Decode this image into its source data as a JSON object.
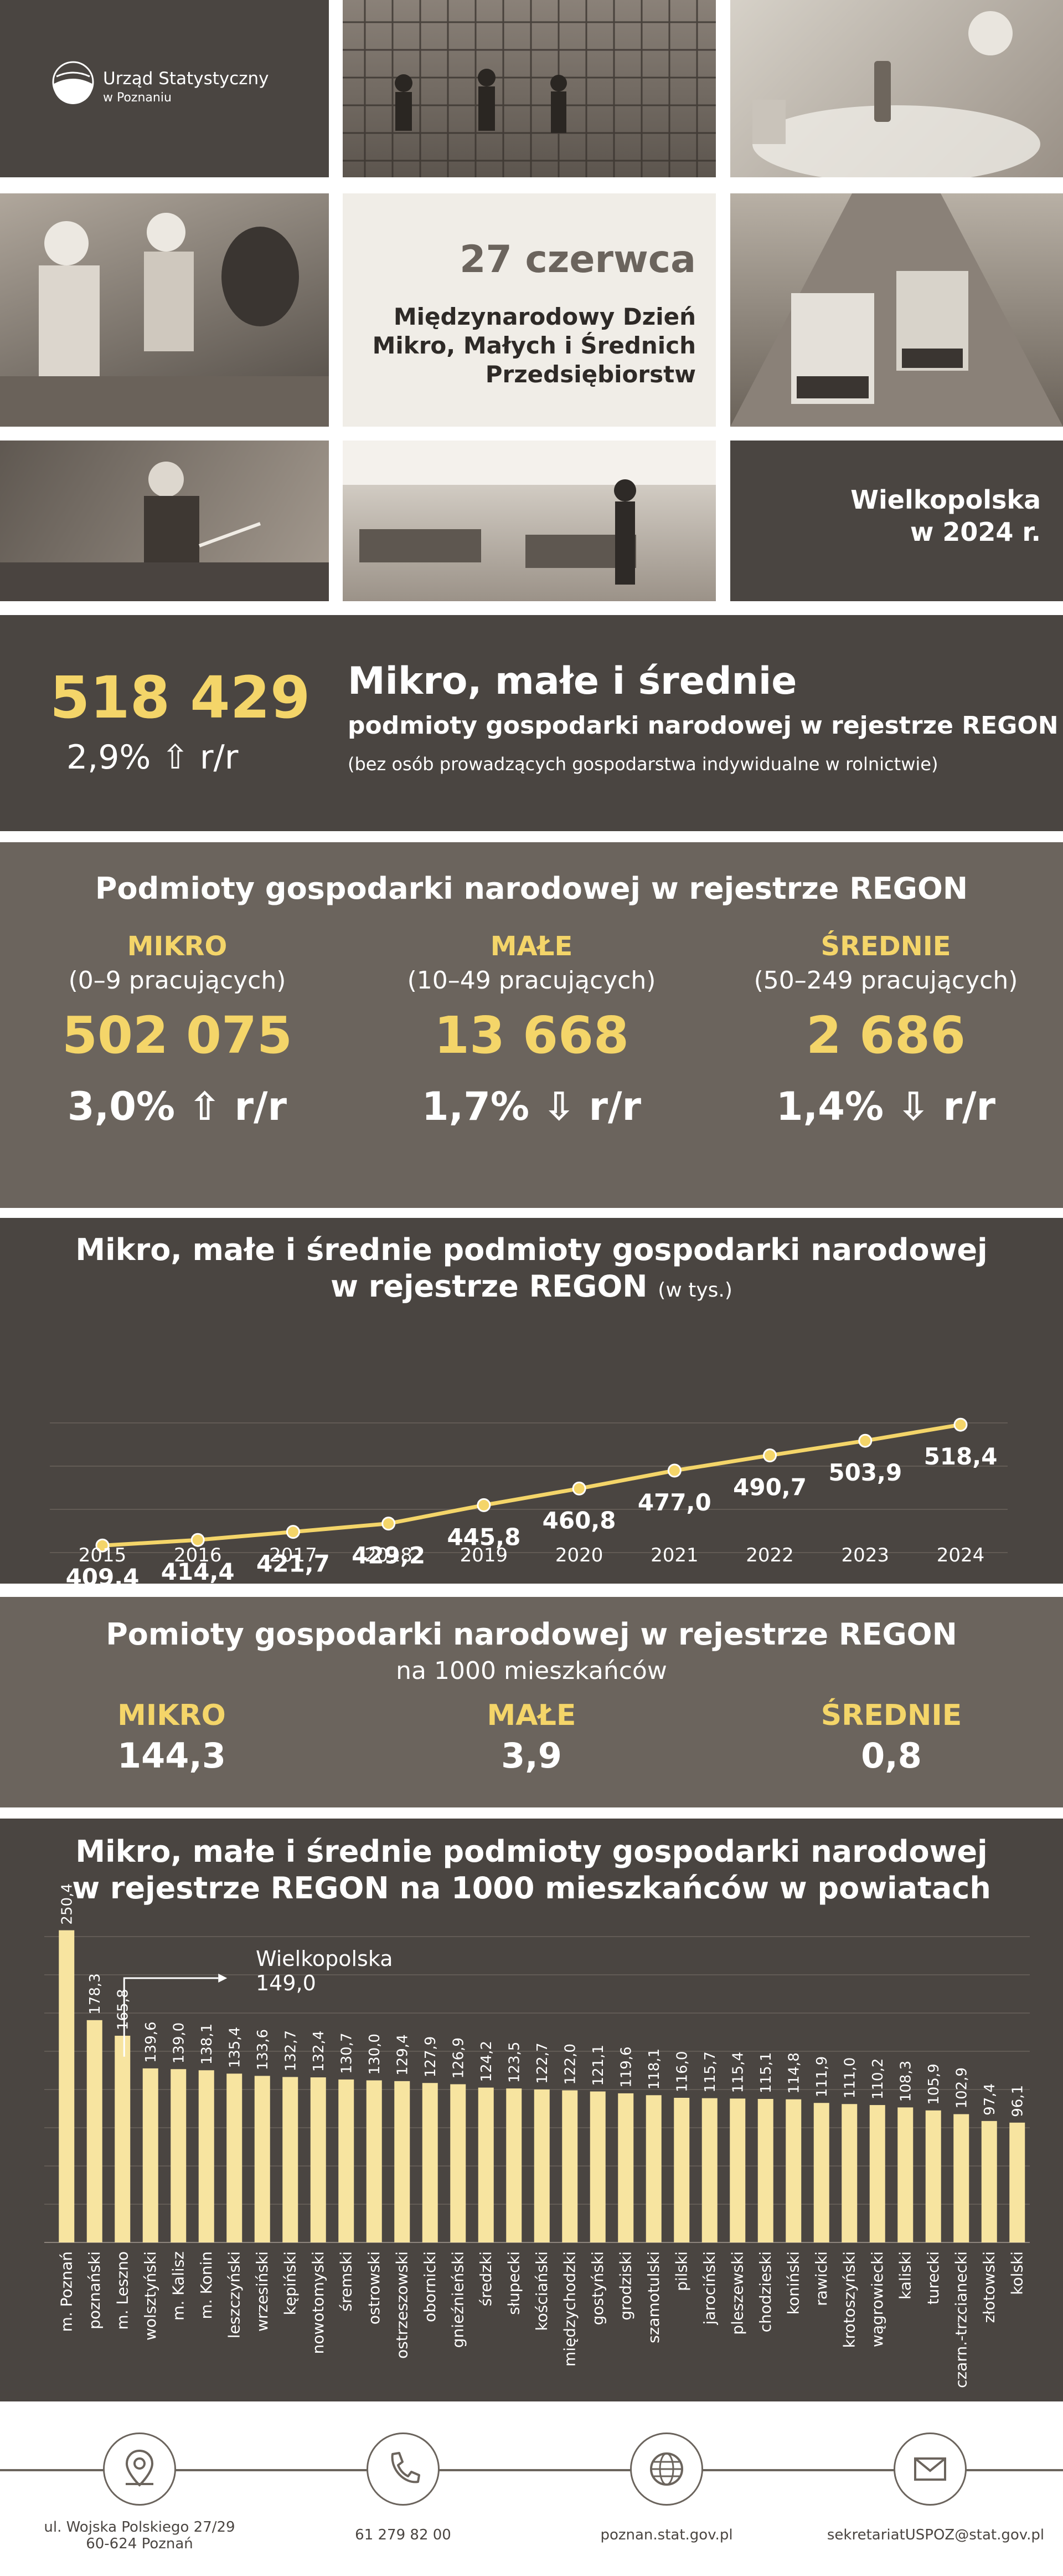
{
  "header": {
    "logo_line1": "Urząd Statystyczny",
    "logo_line2": "w Poznaniu",
    "date": "27 czerwca",
    "event_line1": "Międzynarodowy Dzień",
    "event_line2": "Mikro, Małych i Średnich",
    "event_line3": "Przedsiębiorstw",
    "region_line1": "Wielkopolska",
    "region_line2": "w 2024 r."
  },
  "summary": {
    "value": "518 429",
    "change": "2,9% ⇧ r/r",
    "title": "Mikro, małe i średnie",
    "subtitle": "podmioty gospodarki narodowej w rejestrze REGON",
    "note": "(bez osób prowadzących gospodarstwa indywidualne w rolnictwie)"
  },
  "categories": {
    "title": "Podmioty gospodarki narodowej w rejestrze REGON",
    "items": [
      {
        "name": "MIKRO",
        "range": "(0–9 pracujących)",
        "value": "502 075",
        "change": "3,0% ⇧ r/r"
      },
      {
        "name": "MAŁE",
        "range": "(10–49 pracujących)",
        "value": "13 668",
        "change": "1,7% ⇩ r/r"
      },
      {
        "name": "ŚREDNIE",
        "range": "(50–249 pracujących)",
        "value": "2 686",
        "change": "1,4% ⇩ r/r"
      }
    ]
  },
  "per1000": {
    "title": "Pomioty gospodarki narodowej w rejestrze REGON",
    "subtitle": "na 1000 mieszkańców",
    "items": [
      {
        "name": "MIKRO",
        "value": "144,3"
      },
      {
        "name": "MAŁE",
        "value": "3,9"
      },
      {
        "name": "ŚREDNIE",
        "value": "0,8"
      }
    ]
  },
  "chart_data": [
    {
      "type": "line",
      "title": "Mikro, małe i średnie podmioty gospodarki narodowej",
      "title_line2": "w rejestrze REGON",
      "unit": "(w tys.)",
      "x": [
        "2015",
        "2016",
        "2017",
        "2018",
        "2019",
        "2020",
        "2021",
        "2022",
        "2023",
        "2024"
      ],
      "values": [
        409.4,
        414.4,
        421.7,
        429.2,
        445.8,
        460.8,
        477.0,
        490.7,
        503.9,
        518.4
      ],
      "labels": [
        "409,4",
        "414,4",
        "421,7",
        "429,2",
        "445,8",
        "460,8",
        "477,0",
        "490,7",
        "503,9",
        "518,4"
      ],
      "ylim": [
        380,
        540
      ],
      "grid": true,
      "color": "#f4d569"
    },
    {
      "type": "bar",
      "title": "Mikro, małe i średnie podmioty gospodarki narodowej",
      "title_line2": "w rejestrze REGON na 1000 mieszkańców w powiatach",
      "reference_label": "Wielkopolska",
      "reference_value_label": "149,0",
      "reference_value": 149.0,
      "categories": [
        "m. Poznań",
        "poznański",
        "m. Leszno",
        "wolsztyński",
        "m. Kalisz",
        "m. Konin",
        "leszczyński",
        "wrzesiński",
        "kępiński",
        "nowotomyski",
        "śremski",
        "ostrowski",
        "ostrzeszowski",
        "obornicki",
        "gnieźnieński",
        "średzki",
        "słupecki",
        "kościański",
        "międzychodzki",
        "gostyński",
        "grodziski",
        "szamotulski",
        "pilski",
        "jarociński",
        "pleszewski",
        "chodzieski",
        "koniński",
        "rawicki",
        "krotoszyński",
        "wągrowiecki",
        "kaliski",
        "turecki",
        "czarn.-trzcianecki",
        "złotowski",
        "kolski"
      ],
      "values": [
        250.4,
        178.3,
        165.8,
        139.6,
        139.0,
        138.1,
        135.4,
        133.6,
        132.7,
        132.4,
        130.7,
        130.0,
        129.4,
        127.9,
        126.9,
        124.2,
        123.5,
        122.7,
        122.0,
        121.1,
        119.6,
        118.1,
        116.0,
        115.7,
        115.4,
        115.1,
        114.8,
        111.9,
        111.0,
        110.2,
        108.3,
        105.9,
        102.9,
        97.4,
        96.1
      ],
      "labels": [
        "250,4",
        "178,3",
        "165,8",
        "139,6",
        "139,0",
        "138,1",
        "135,4",
        "133,6",
        "132,7",
        "132,4",
        "130,7",
        "130,0",
        "129,4",
        "127,9",
        "126,9",
        "124,2",
        "123,5",
        "122,7",
        "122,0",
        "121,1",
        "119,6",
        "118,1",
        "116,0",
        "115,7",
        "115,4",
        "115,1",
        "114,8",
        "111,9",
        "111,0",
        "110,2",
        "108,3",
        "105,9",
        "102,9",
        "97,4",
        "96,1"
      ],
      "color": "#f7e4a0"
    }
  ],
  "footer": {
    "address_line1": "ul. Wojska Polskiego 27/29",
    "address_line2": "60-624 Poznań",
    "phone": "61 279 82 00",
    "website": "poznan.stat.gov.pl",
    "email": "sekretariatUSPOZ@stat.gov.pl"
  },
  "colors": {
    "dark": "#4a4541",
    "mid": "#6b645d",
    "accent": "#f4d569"
  }
}
